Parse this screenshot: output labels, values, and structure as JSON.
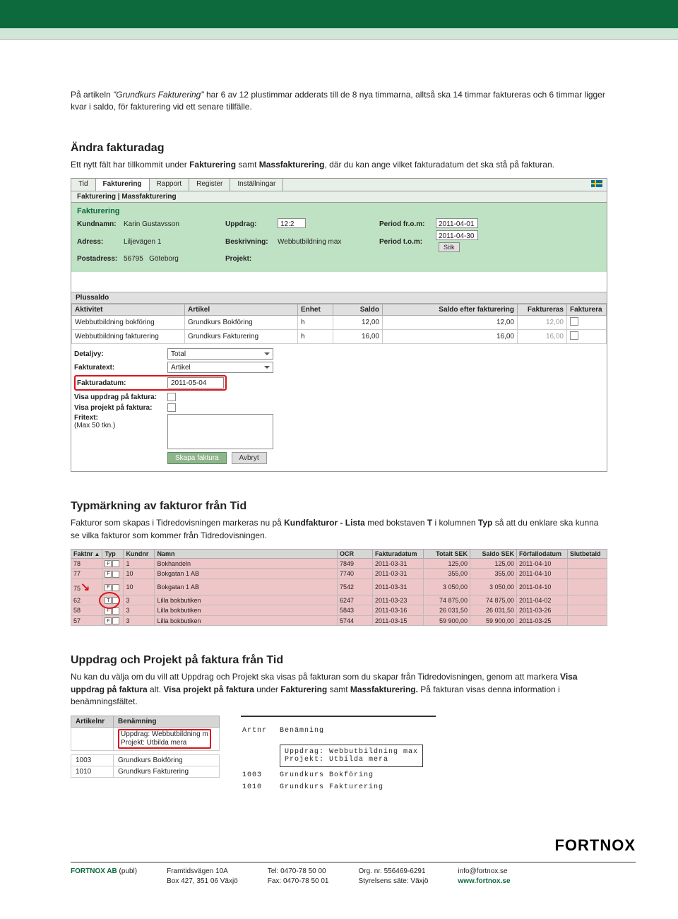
{
  "banner": {
    "bg_dark": "#0d6a3d",
    "bg_light": "#d0e6d6"
  },
  "intro": {
    "prefix": "På artikeln ",
    "em": "\"Grundkurs Fakturering\"",
    "rest": " har 6 av 12 plustimmar adderats till de 8 nya timmarna, alltså ska 14 timmar faktureras och 6 timmar ligger kvar i saldo, för fakturering vid ett senare tillfälle."
  },
  "s1": {
    "title": "Ändra fakturadag",
    "p1a": "Ett nytt fält har tillkommit under ",
    "b1": "Fakturering",
    "p1b": " samt ",
    "b2": "Massfakturering",
    "p1c": ", där du kan ange vilket fakturadatum det ska stå på fakturan."
  },
  "ui": {
    "tabs": [
      "Tid",
      "Fakturering",
      "Rapport",
      "Register",
      "Inställningar"
    ],
    "activeTab": 1,
    "subtabs": "Fakturering  |  Massfakturering",
    "green_title": "Fakturering",
    "labels": {
      "kundnamn": "Kundnamn:",
      "adress": "Adress:",
      "postadress": "Postadress:",
      "uppdrag": "Uppdrag:",
      "beskrivning": "Beskrivning:",
      "projekt": "Projekt:",
      "period_from": "Period fr.o.m:",
      "period_to": "Period t.o.m:"
    },
    "values": {
      "kundnamn": "Karin Gustavsson",
      "adress": "Liljevägen 1",
      "postnr": "56795",
      "ort": "Göteborg",
      "uppdrag": "12:2",
      "beskrivning": "Webbutbildning max",
      "projekt": "",
      "period_from": "2011-04-01",
      "period_to": "2011-04-30"
    },
    "sok_btn": "Sök",
    "plussaldo": "Plussaldo",
    "pl_cols": [
      "Aktivitet",
      "Artikel",
      "Enhet",
      "Saldo",
      "Saldo efter fakturering",
      "Faktureras",
      "Fakturera"
    ],
    "pl_rows": [
      {
        "akt": "Webbutbildning bokföring",
        "art": "Grundkurs Bokföring",
        "enh": "h",
        "saldo": "12,00",
        "efter": "12,00",
        "fakt": "12,00"
      },
      {
        "akt": "Webbutbildning fakturering",
        "art": "Grundkurs Fakturering",
        "enh": "h",
        "saldo": "16,00",
        "efter": "16,00",
        "fakt": "16,00"
      }
    ],
    "det": {
      "detaljvy": "Detaljvy:",
      "detaljvy_v": "Total",
      "fakturatext": "Fakturatext:",
      "fakturatext_v": "Artikel",
      "fakturadatum": "Fakturadatum:",
      "fakturadatum_v": "2011-05-04",
      "visa_uppdrag": "Visa uppdrag på faktura:",
      "visa_projekt": "Visa projekt på faktura:",
      "fritext": "Fritext:",
      "maxtkn": "(Max 50 tkn.)",
      "skapa": "Skapa faktura",
      "avbryt": "Avbryt"
    }
  },
  "s2": {
    "title": "Typmärkning av fakturor från Tid",
    "p1a": "Fakturor som skapas i Tidredovisningen markeras nu på ",
    "b1": "Kundfakturor - Lista",
    "p1b": " med bokstaven ",
    "b2": "T",
    "p1c": " i kolumnen ",
    "b3": "Typ",
    "p1d": " så att du enklare ska kunna se vilka fakturor som kommer från Tidredovisningen."
  },
  "pink": {
    "cols": [
      "Faktnr",
      "Typ",
      "Kundnr",
      "Namn",
      "OCR",
      "Fakturadatum",
      "Totalt SEK",
      "Saldo SEK",
      "Förfallodatum",
      "Slutbetald"
    ],
    "rows": [
      {
        "nr": "78",
        "t": "F",
        "k": "1",
        "namn": "Bokhandeln",
        "ocr": "7849",
        "d": "2011-03-31",
        "tot": "125,00",
        "sal": "125,00",
        "ff": "2011-04-10"
      },
      {
        "nr": "77",
        "t": "F",
        "k": "10",
        "namn": "Bokgatan 1 AB",
        "ocr": "7740",
        "d": "2011-03-31",
        "tot": "355,00",
        "sal": "355,00",
        "ff": "2011-04-10"
      },
      {
        "nr": "75",
        "t": "F",
        "k": "10",
        "namn": "Bokgatan 1 AB",
        "ocr": "7542",
        "d": "2011-03-31",
        "tot": "3 050,00",
        "sal": "3 050,00",
        "ff": "2011-04-10"
      },
      {
        "nr": "62",
        "t": "T",
        "k": "3",
        "namn": "Lilla bokbutiken",
        "ocr": "6247",
        "d": "2011-03-23",
        "tot": "74 875,00",
        "sal": "74 875,00",
        "ff": "2011-04-02"
      },
      {
        "nr": "58",
        "t": "F",
        "k": "3",
        "namn": "Lilla bokbutiken",
        "ocr": "5843",
        "d": "2011-03-16",
        "tot": "26 031,50",
        "sal": "26 031,50",
        "ff": "2011-03-26"
      },
      {
        "nr": "57",
        "t": "F",
        "k": "3",
        "namn": "Lilla bokbutiken",
        "ocr": "5744",
        "d": "2011-03-15",
        "tot": "59 900,00",
        "sal": "59 900,00",
        "ff": "2011-03-25"
      }
    ]
  },
  "s3": {
    "title": "Uppdrag och Projekt på faktura från Tid",
    "p1": "Nu kan du välja om du vill att Uppdrag och Projekt ska visas på fakturan som du skapar från Tidredovisningen, genom att markera ",
    "b1": "Visa uppdrag på faktura",
    "p2": " alt. ",
    "b2": "Visa projekt på faktura",
    "p3": " under ",
    "b3": "Fakturering",
    "p4": " samt ",
    "b4": "Massfakturering.",
    "p5": " På fakturan visas denna information i benämningsfältet."
  },
  "art_left": {
    "cols": [
      "Artikelnr",
      "Benämning"
    ],
    "box_l1": "Uppdrag: Webbutbildning m",
    "box_l2": "Projekt: Utbilda mera",
    "rows": [
      {
        "nr": "1003",
        "ben": "Grundkurs Bokföring"
      },
      {
        "nr": "1010",
        "ben": "Grundkurs Fakturering"
      }
    ]
  },
  "art_right": {
    "h1": "Artnr",
    "h2": "Benämning",
    "box_l1": "Uppdrag: Webbutbildning max",
    "box_l2": "Projekt: Utbilda mera",
    "rows": [
      {
        "nr": "1003",
        "ben": "Grundkurs Bokföring"
      },
      {
        "nr": "1010",
        "ben": "Grundkurs Fakturering"
      }
    ]
  },
  "logo": "FORTNOX",
  "footer": {
    "c1a": "FORTNOX AB",
    "c1b": " (publ)",
    "c2a": "Framtidsvägen 10A",
    "c2b": "Box 427, 351 06 Växjö",
    "c3a": "Tel: 0470-78 50 00",
    "c3b": "Fax: 0470-78 50 01",
    "c4a": "Org. nr. 556469-6291",
    "c4b": "Styrelsens säte: Växjö",
    "c5a": "info@fortnox.se",
    "c5b": "www.fortnox.se"
  }
}
